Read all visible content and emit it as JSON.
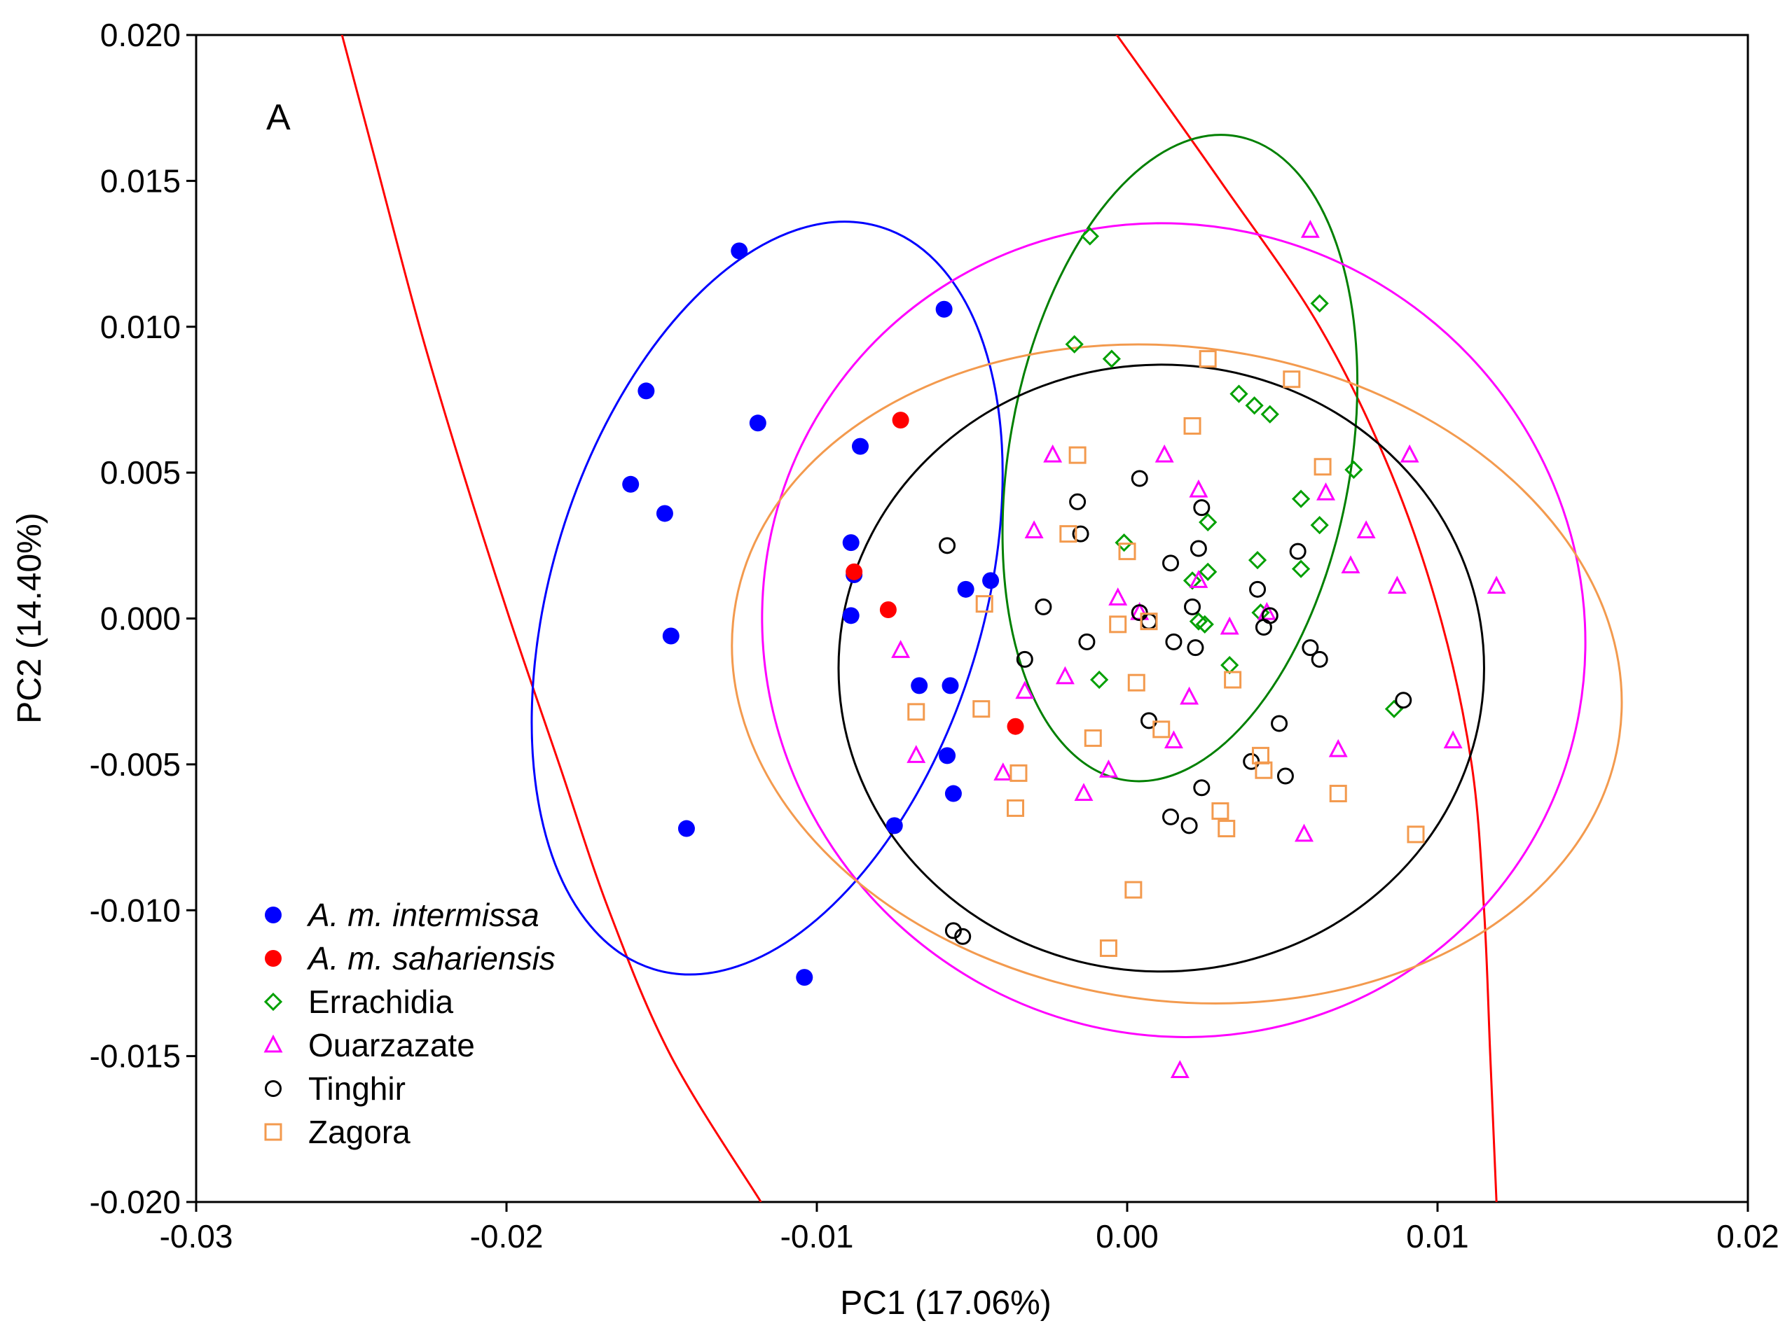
{
  "chart_data": {
    "type": "scatter",
    "panel_label": "A",
    "xlabel": "PC1 (17.06%)",
    "ylabel": "PC2 (14.40%)",
    "xlim": [
      -0.03,
      0.02
    ],
    "ylim": [
      -0.02,
      0.02
    ],
    "xticks": [
      -0.03,
      -0.02,
      -0.01,
      0.0,
      0.01,
      0.02
    ],
    "yticks": [
      -0.02,
      -0.015,
      -0.01,
      -0.005,
      0.0,
      0.005,
      0.01,
      0.015,
      0.02
    ],
    "xtick_labels": [
      "-0.03",
      "-0.02",
      "-0.01",
      "0.00",
      "0.01",
      "0.02"
    ],
    "ytick_labels": [
      "-0.020",
      "-0.015",
      "-0.010",
      "-0.005",
      "0.000",
      "0.005",
      "0.010",
      "0.015",
      "0.020"
    ],
    "legend_position": "bottom-left",
    "series": [
      {
        "name": "A. m. intermissa",
        "italic": true,
        "marker": "filled-circle",
        "color": "#0000ff",
        "points": [
          [
            -0.0125,
            0.0126
          ],
          [
            -0.0059,
            0.0106
          ],
          [
            -0.0155,
            0.0078
          ],
          [
            -0.0119,
            0.0067
          ],
          [
            -0.0086,
            0.0059
          ],
          [
            -0.016,
            0.0046
          ],
          [
            -0.0149,
            0.0036
          ],
          [
            -0.0089,
            0.0026
          ],
          [
            -0.0088,
            0.0015
          ],
          [
            -0.0089,
            0.0001
          ],
          [
            -0.0044,
            0.0013
          ],
          [
            -0.0052,
            0.001
          ],
          [
            -0.0147,
            -0.0006
          ],
          [
            -0.0067,
            -0.0023
          ],
          [
            -0.0057,
            -0.0023
          ],
          [
            -0.0058,
            -0.0047
          ],
          [
            -0.0056,
            -0.006
          ],
          [
            -0.0075,
            -0.0071
          ],
          [
            -0.0142,
            -0.0072
          ],
          [
            -0.0104,
            -0.0123
          ]
        ]
      },
      {
        "name": "A. m. sahariensis",
        "italic": true,
        "marker": "filled-circle",
        "color": "#ff0000",
        "points": [
          [
            -0.0073,
            0.0068
          ],
          [
            -0.0088,
            0.0016
          ],
          [
            -0.0077,
            0.0003
          ],
          [
            -0.0036,
            -0.0037
          ]
        ]
      },
      {
        "name": "Errachidia",
        "italic": false,
        "marker": "open-diamond",
        "color": "#00a000",
        "points": [
          [
            -0.0012,
            0.0131
          ],
          [
            0.0062,
            0.0108
          ],
          [
            -0.0017,
            0.0094
          ],
          [
            -0.0005,
            0.0089
          ],
          [
            0.0036,
            0.0077
          ],
          [
            0.0041,
            0.0073
          ],
          [
            0.0046,
            0.007
          ],
          [
            0.0073,
            0.0051
          ],
          [
            0.0056,
            0.0041
          ],
          [
            0.0062,
            0.0032
          ],
          [
            0.0026,
            0.0033
          ],
          [
            -0.0001,
            0.0026
          ],
          [
            0.0042,
            0.002
          ],
          [
            0.0056,
            0.0017
          ],
          [
            0.0026,
            0.0016
          ],
          [
            0.0021,
            0.0013
          ],
          [
            0.0043,
            0.0002
          ],
          [
            0.0023,
            -0.0001
          ],
          [
            0.0025,
            -0.0002
          ],
          [
            -0.0009,
            -0.0021
          ],
          [
            0.0033,
            -0.0016
          ],
          [
            0.0086,
            -0.0031
          ]
        ]
      },
      {
        "name": "Ouarzazate",
        "italic": false,
        "marker": "open-triangle",
        "color": "#ff00ff",
        "points": [
          [
            0.0059,
            0.0133
          ],
          [
            -0.0024,
            0.0056
          ],
          [
            0.0012,
            0.0056
          ],
          [
            0.0091,
            0.0056
          ],
          [
            0.0023,
            0.0044
          ],
          [
            0.0064,
            0.0043
          ],
          [
            -0.003,
            0.003
          ],
          [
            0.0077,
            0.003
          ],
          [
            0.0072,
            0.0018
          ],
          [
            0.0023,
            0.0013
          ],
          [
            0.0087,
            0.0011
          ],
          [
            0.0119,
            0.0011
          ],
          [
            -0.0003,
            0.0007
          ],
          [
            0.0004,
            0.0002
          ],
          [
            0.0045,
            0.0002
          ],
          [
            0.0033,
            -0.0003
          ],
          [
            -0.0073,
            -0.0011
          ],
          [
            -0.002,
            -0.002
          ],
          [
            -0.0033,
            -0.0025
          ],
          [
            0.002,
            -0.0027
          ],
          [
            0.0015,
            -0.0042
          ],
          [
            0.0105,
            -0.0042
          ],
          [
            -0.0068,
            -0.0047
          ],
          [
            0.0068,
            -0.0045
          ],
          [
            -0.004,
            -0.0053
          ],
          [
            -0.0006,
            -0.0052
          ],
          [
            -0.0014,
            -0.006
          ],
          [
            0.0057,
            -0.0074
          ],
          [
            0.0017,
            -0.0155
          ]
        ]
      },
      {
        "name": "Tinghir",
        "italic": false,
        "marker": "open-circle",
        "color": "#000000",
        "points": [
          [
            0.0004,
            0.0048
          ],
          [
            -0.0016,
            0.004
          ],
          [
            0.0024,
            0.0038
          ],
          [
            -0.0058,
            0.0025
          ],
          [
            -0.0015,
            0.0029
          ],
          [
            0.0023,
            0.0024
          ],
          [
            0.0055,
            0.0023
          ],
          [
            0.0014,
            0.0019
          ],
          [
            0.0042,
            0.001
          ],
          [
            -0.0027,
            0.0004
          ],
          [
            0.0021,
            0.0004
          ],
          [
            0.0046,
            0.0001
          ],
          [
            0.0004,
            0.0002
          ],
          [
            0.0007,
            -0.0001
          ],
          [
            0.0044,
            -0.0003
          ],
          [
            -0.0013,
            -0.0008
          ],
          [
            0.0015,
            -0.0008
          ],
          [
            0.0022,
            -0.001
          ],
          [
            0.0059,
            -0.001
          ],
          [
            -0.0033,
            -0.0014
          ],
          [
            0.0062,
            -0.0014
          ],
          [
            0.0089,
            -0.0028
          ],
          [
            0.0007,
            -0.0035
          ],
          [
            0.0049,
            -0.0036
          ],
          [
            0.004,
            -0.0049
          ],
          [
            0.0051,
            -0.0054
          ],
          [
            0.0024,
            -0.0058
          ],
          [
            0.0014,
            -0.0068
          ],
          [
            0.002,
            -0.0071
          ],
          [
            -0.0056,
            -0.0107
          ],
          [
            -0.0053,
            -0.0109
          ]
        ]
      },
      {
        "name": "Zagora",
        "italic": false,
        "marker": "open-square",
        "color": "#f39a4e",
        "points": [
          [
            0.0026,
            0.0089
          ],
          [
            0.0053,
            0.0082
          ],
          [
            0.0021,
            0.0066
          ],
          [
            -0.0016,
            0.0056
          ],
          [
            0.0063,
            0.0052
          ],
          [
            -0.0019,
            0.0029
          ],
          [
            0.0,
            0.0023
          ],
          [
            -0.0046,
            0.0005
          ],
          [
            -0.0003,
            -0.0002
          ],
          [
            0.0007,
            -0.0001
          ],
          [
            -0.0068,
            -0.0032
          ],
          [
            -0.0047,
            -0.0031
          ],
          [
            0.0003,
            -0.0022
          ],
          [
            0.0034,
            -0.0021
          ],
          [
            -0.0011,
            -0.0041
          ],
          [
            0.0011,
            -0.0038
          ],
          [
            -0.0035,
            -0.0053
          ],
          [
            0.0043,
            -0.0047
          ],
          [
            0.0044,
            -0.0052
          ],
          [
            0.0068,
            -0.006
          ],
          [
            -0.0036,
            -0.0065
          ],
          [
            0.003,
            -0.0066
          ],
          [
            0.0032,
            -0.0072
          ],
          [
            0.0093,
            -0.0074
          ],
          [
            0.0002,
            -0.0093
          ],
          [
            -0.0006,
            -0.0113
          ]
        ]
      }
    ],
    "ellipses": [
      {
        "group": "A. m. intermissa",
        "color": "#0000ff",
        "cx": -0.0116,
        "cy": 0.0007,
        "sx": 0.00695,
        "sy": 0.0133,
        "angle_deg": 17
      },
      {
        "group": "Errachidia",
        "color": "#008000",
        "cx": 0.0017,
        "cy": 0.0055,
        "sx": 0.0055,
        "sy": 0.0112,
        "angle_deg": 10
      },
      {
        "group": "Ouarzazate",
        "color": "#ff00ff",
        "cx": 0.0015,
        "cy": -0.0004,
        "sx": 0.0134,
        "sy": 0.0138,
        "angle_deg": 35
      },
      {
        "group": "Tinghir",
        "color": "#000000",
        "cx": 0.0011,
        "cy": -0.0017,
        "sx": 0.0104,
        "sy": 0.0104,
        "angle_deg": 0
      },
      {
        "group": "Zagora",
        "color": "#f39a4e",
        "cx": 0.0016,
        "cy": -0.0019,
        "sx": 0.0144,
        "sy": 0.0112,
        "angle_deg": 8
      }
    ],
    "curves": [
      {
        "group": "A. m. sahariensis",
        "color": "#ff0000",
        "points": [
          [
            -0.0254,
            0.0204
          ],
          [
            -0.0243,
            0.016
          ],
          [
            -0.0228,
            0.01
          ],
          [
            -0.0214,
            0.005
          ],
          [
            -0.0199,
            0.0
          ],
          [
            -0.0183,
            -0.005
          ],
          [
            -0.0167,
            -0.01
          ],
          [
            -0.0147,
            -0.015
          ],
          [
            -0.0118,
            -0.02
          ]
        ]
      },
      {
        "group": "A. m. sahariensis",
        "color": "#ff0000",
        "points": [
          [
            -0.0006,
            0.0204
          ],
          [
            0.003,
            0.015
          ],
          [
            0.0062,
            0.01
          ],
          [
            0.0085,
            0.005
          ],
          [
            0.0101,
            0.0
          ],
          [
            0.0111,
            -0.005
          ],
          [
            0.0115,
            -0.01
          ],
          [
            0.0117,
            -0.015
          ],
          [
            0.0119,
            -0.02
          ]
        ]
      }
    ]
  }
}
